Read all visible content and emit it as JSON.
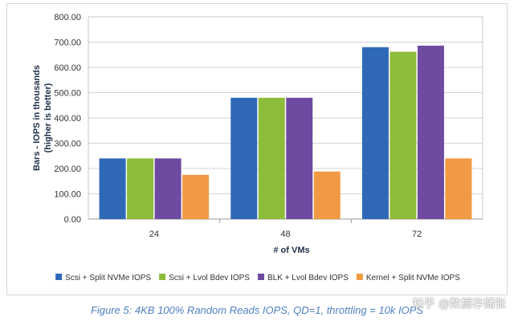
{
  "chart_data": {
    "type": "bar",
    "title": "",
    "xlabel": "# of VMs",
    "ylabel_lines": [
      "Bars - IOPS in thousands",
      "(higher is better)"
    ],
    "categories": [
      "24",
      "48",
      "72"
    ],
    "y_ticks": [
      "0.00",
      "100.00",
      "200.00",
      "300.00",
      "400.00",
      "500.00",
      "600.00",
      "700.00",
      "800.00"
    ],
    "ylim": [
      0,
      800
    ],
    "grid": true,
    "legend_position": "bottom",
    "series": [
      {
        "name": "Scsi + Split NVMe IOPS",
        "color": "#2f68b7",
        "values": [
          240,
          480,
          680
        ]
      },
      {
        "name": "Scsi + Lvol Bdev IOPS",
        "color": "#8dbc3b",
        "values": [
          240,
          480,
          662
        ]
      },
      {
        "name": "BLK + Lvol Bdev IOPS",
        "color": "#6e4aa0",
        "values": [
          240,
          480,
          686
        ]
      },
      {
        "name": "Kernel + Split NVMe IOPS",
        "color": "#f29a43",
        "values": [
          175,
          188,
          240
        ]
      }
    ]
  },
  "caption": "Figure 5: 4KB 100% Random Reads IOPS, QD=1, throttling = 10k IOPS",
  "watermark": "知乎 @数据存储张"
}
